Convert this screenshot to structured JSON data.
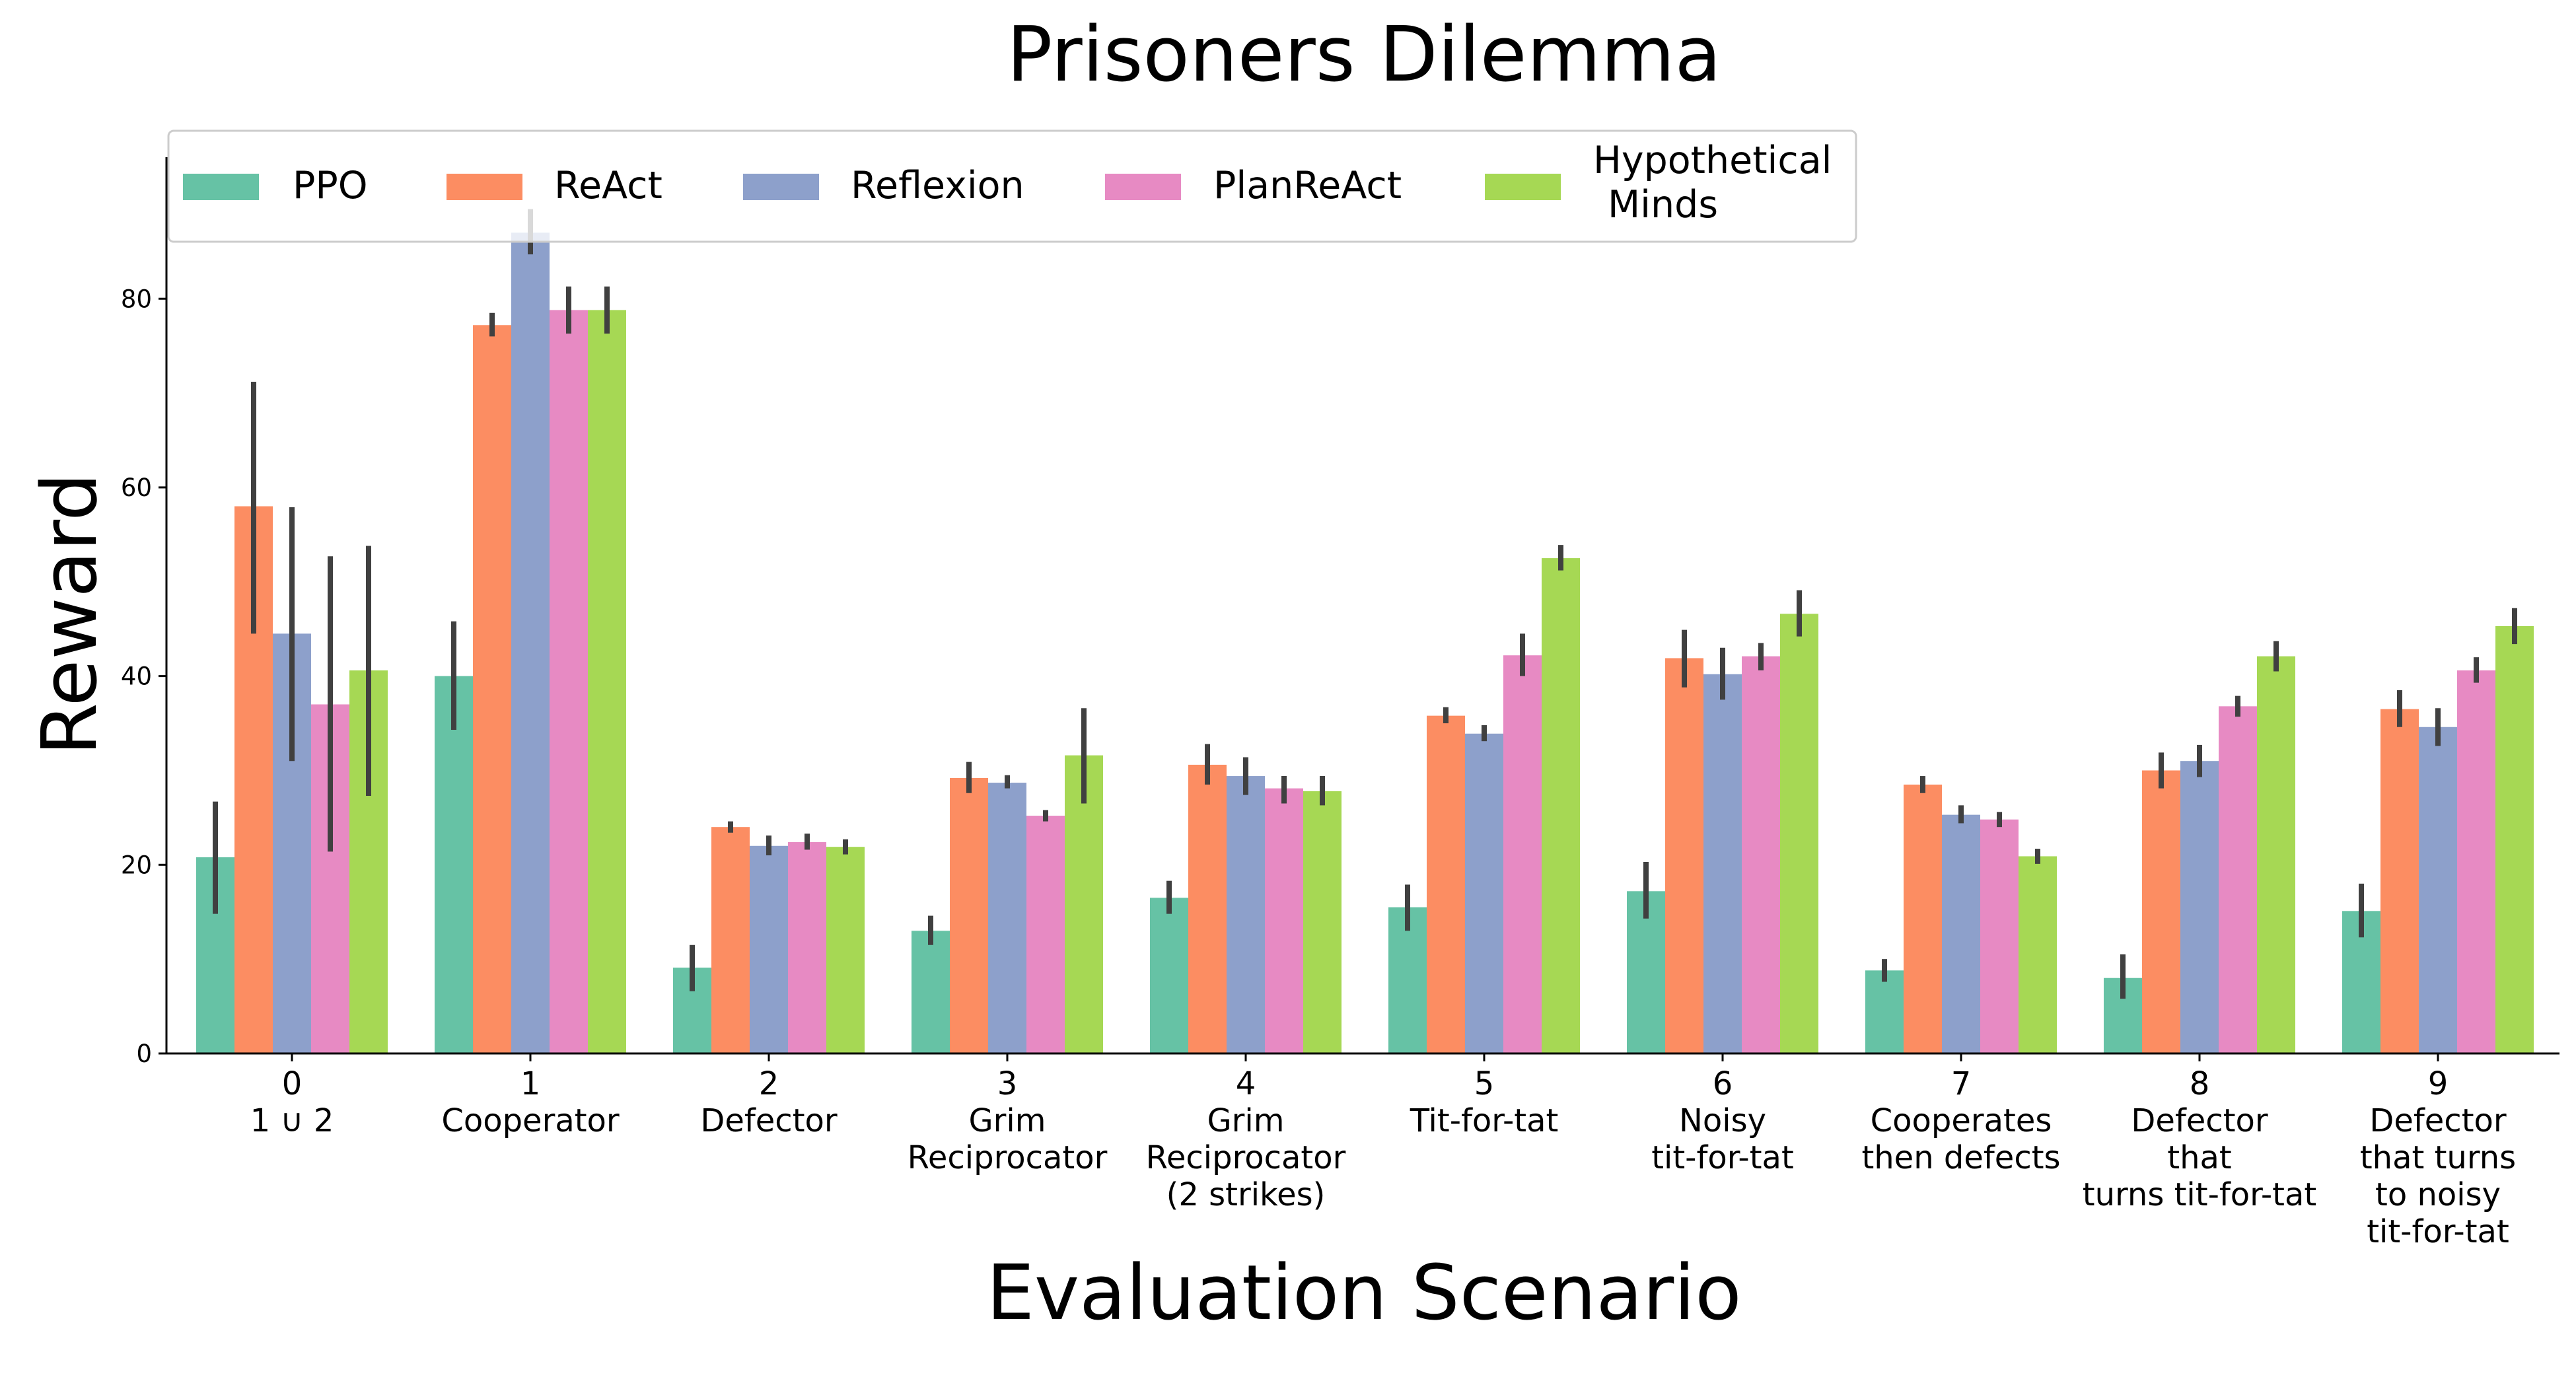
{
  "chart_data": {
    "type": "bar",
    "title": "Prisoners Dilemma",
    "xlabel": "Evaluation Scenario",
    "ylabel": "Reward",
    "ylim": [
      0,
      95
    ],
    "yticks": [
      0,
      20,
      40,
      60,
      80
    ],
    "grid": false,
    "legend_position": "top",
    "categories": [
      {
        "id": "0",
        "label": [
          "1 ∪ 2"
        ]
      },
      {
        "id": "1",
        "label": [
          "Cooperator"
        ]
      },
      {
        "id": "2",
        "label": [
          "Defector"
        ]
      },
      {
        "id": "3",
        "label": [
          "Grim",
          "Reciprocator"
        ]
      },
      {
        "id": "4",
        "label": [
          "Grim",
          "Reciprocator",
          "(2 strikes)"
        ]
      },
      {
        "id": "5",
        "label": [
          "Tit-for-tat"
        ]
      },
      {
        "id": "6",
        "label": [
          "Noisy",
          "tit-for-tat"
        ]
      },
      {
        "id": "7",
        "label": [
          "Cooperates",
          "then defects"
        ]
      },
      {
        "id": "8",
        "label": [
          "Defector",
          "that",
          "turns tit-for-tat"
        ]
      },
      {
        "id": "9",
        "label": [
          "Defector",
          "that turns",
          "to noisy",
          "tit-for-tat"
        ]
      }
    ],
    "series": [
      {
        "name": "PPO",
        "legend_label": [
          "PPO"
        ],
        "color": "#66c2a5",
        "values": [
          20.8,
          40.0,
          9.1,
          13.0,
          16.5,
          15.5,
          17.2,
          8.8,
          8.0,
          15.1
        ],
        "errors": [
          [
            14.8,
            26.7
          ],
          [
            34.3,
            45.8
          ],
          [
            6.6,
            11.5
          ],
          [
            11.5,
            14.6
          ],
          [
            14.8,
            18.3
          ],
          [
            13.0,
            17.9
          ],
          [
            14.3,
            20.3
          ],
          [
            7.6,
            10.0
          ],
          [
            5.8,
            10.5
          ],
          [
            12.3,
            18.0
          ]
        ]
      },
      {
        "name": "ReAct",
        "legend_label": [
          "ReAct"
        ],
        "color": "#fc8d62",
        "values": [
          58.0,
          77.2,
          24.0,
          29.2,
          30.6,
          35.8,
          41.9,
          28.5,
          30.0,
          36.5
        ],
        "errors": [
          [
            44.5,
            71.2
          ],
          [
            76.0,
            78.5
          ],
          [
            23.4,
            24.6
          ],
          [
            27.6,
            30.9
          ],
          [
            28.5,
            32.8
          ],
          [
            35.0,
            36.7
          ],
          [
            38.8,
            44.9
          ],
          [
            27.6,
            29.4
          ],
          [
            28.1,
            31.9
          ],
          [
            34.6,
            38.5
          ]
        ]
      },
      {
        "name": "Reflexion",
        "legend_label": [
          "Reflexion"
        ],
        "color": "#8da0cb",
        "values": [
          44.5,
          87.0,
          22.0,
          28.7,
          29.4,
          33.9,
          40.2,
          25.3,
          31.0,
          34.6
        ],
        "errors": [
          [
            31.0,
            57.9
          ],
          [
            84.7,
            89.5
          ],
          [
            21.0,
            23.1
          ],
          [
            28.1,
            29.5
          ],
          [
            27.4,
            31.4
          ],
          [
            33.1,
            34.8
          ],
          [
            37.5,
            43.0
          ],
          [
            24.4,
            26.3
          ],
          [
            29.3,
            32.7
          ],
          [
            32.6,
            36.6
          ]
        ]
      },
      {
        "name": "PlanReAct",
        "legend_label": [
          "PlanReAct"
        ],
        "color": "#e78ac3",
        "values": [
          37.0,
          78.8,
          22.4,
          25.2,
          28.1,
          42.2,
          42.1,
          24.8,
          36.8,
          40.6
        ],
        "errors": [
          [
            21.4,
            52.7
          ],
          [
            76.3,
            81.3
          ],
          [
            21.6,
            23.3
          ],
          [
            24.6,
            25.8
          ],
          [
            26.5,
            29.4
          ],
          [
            40.0,
            44.5
          ],
          [
            40.6,
            43.5
          ],
          [
            24.0,
            25.6
          ],
          [
            35.7,
            37.9
          ],
          [
            39.3,
            42.0
          ]
        ]
      },
      {
        "name": "Hypothetical Minds",
        "legend_label": [
          "Hypothetical",
          "Minds"
        ],
        "color": "#a6d854",
        "values": [
          40.6,
          78.8,
          21.9,
          31.6,
          27.8,
          52.5,
          46.6,
          20.9,
          42.1,
          45.3
        ],
        "errors": [
          [
            27.3,
            53.8
          ],
          [
            76.3,
            81.3
          ],
          [
            21.1,
            22.7
          ],
          [
            26.5,
            36.6
          ],
          [
            26.3,
            29.4
          ],
          [
            51.2,
            53.9
          ],
          [
            44.2,
            49.1
          ],
          [
            20.1,
            21.7
          ],
          [
            40.5,
            43.7
          ],
          [
            43.4,
            47.2
          ]
        ]
      }
    ]
  }
}
